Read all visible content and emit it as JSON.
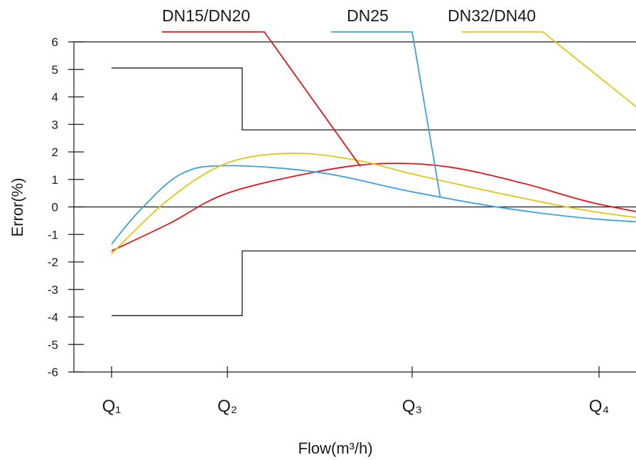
{
  "chart_data": {
    "type": "line",
    "xlabel": "Flow(m³/h)",
    "ylabel": "Error(%)",
    "ylim": [
      -6,
      6
    ],
    "yticks": [
      "6",
      "5",
      "4",
      "3",
      "2",
      "1",
      "0",
      "-1",
      "-2",
      "-3",
      "-4",
      "-5",
      "-6"
    ],
    "xticks": [
      "Q₁",
      "Q₂",
      "Q₃",
      "Q₄"
    ],
    "grid": false,
    "legend_position": "top",
    "series": [
      {
        "name": "DN15/DN20",
        "color": "#e0141e",
        "points": [
          [
            0,
            -1.6
          ],
          [
            0.5,
            -0.6
          ],
          [
            1,
            0.5
          ],
          [
            1.5,
            1.3
          ],
          [
            1.85,
            1.58
          ],
          [
            2.2,
            1.45
          ],
          [
            2.6,
            0.85
          ],
          [
            3.0,
            0.1
          ],
          [
            3.5,
            -0.45
          ],
          [
            3.95,
            -0.35
          ]
        ]
      },
      {
        "name": "DN25",
        "color": "#3fa0e0",
        "points": [
          [
            0,
            -1.35
          ],
          [
            0.25,
            -0.1
          ],
          [
            0.6,
            1.2
          ],
          [
            1,
            1.5
          ],
          [
            1.5,
            1.25
          ],
          [
            2,
            0.55
          ],
          [
            2.5,
            -0.05
          ],
          [
            3,
            -0.45
          ],
          [
            3.5,
            -0.62
          ],
          [
            3.95,
            -0.65
          ]
        ]
      },
      {
        "name": "DN32/DN40",
        "color": "#e3c614",
        "points": [
          [
            0,
            -1.7
          ],
          [
            0.5,
            0.3
          ],
          [
            1,
            1.6
          ],
          [
            1.35,
            1.95
          ],
          [
            1.7,
            1.7
          ],
          [
            2,
            1.2
          ],
          [
            2.5,
            0.45
          ],
          [
            3,
            -0.2
          ],
          [
            3.5,
            -0.55
          ],
          [
            3.95,
            -0.45
          ]
        ]
      }
    ],
    "tolerance_limits": {
      "upper": [
        [
          0,
          5.05
        ],
        [
          1.08,
          5.05
        ],
        [
          1.08,
          2.8
        ],
        [
          4.0,
          2.8
        ]
      ],
      "lower": [
        [
          0,
          -3.95
        ],
        [
          1.08,
          -3.95
        ],
        [
          1.08,
          -1.6
        ],
        [
          4.1,
          -1.6
        ]
      ]
    }
  }
}
